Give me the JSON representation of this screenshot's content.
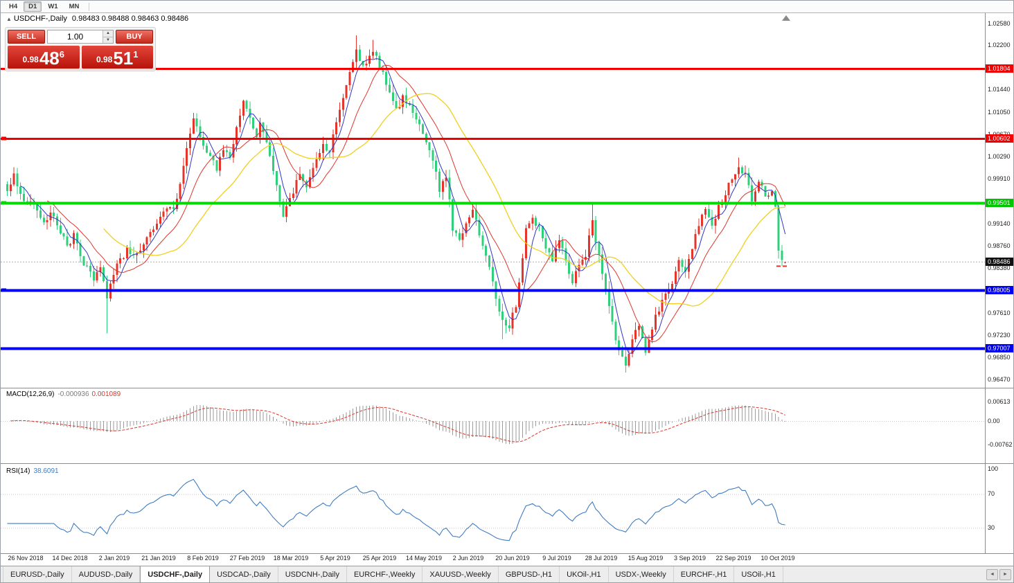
{
  "toolbar": {
    "timeframes": [
      "H4",
      "D1",
      "W1",
      "MN"
    ],
    "active": "D1"
  },
  "header": {
    "collapse_icon": "▲",
    "symbol": "USDCHF-,Daily",
    "open": "0.98483",
    "high": "0.98488",
    "low": "0.98463",
    "close": "0.98486"
  },
  "trade_panel": {
    "sell_label": "SELL",
    "buy_label": "BUY",
    "volume": "1.00",
    "volume_up_icon": "▲",
    "volume_down_icon": "▼",
    "sell_price": {
      "prefix": "0.98",
      "big": "48",
      "sup": "6"
    },
    "buy_price": {
      "prefix": "0.98",
      "big": "51",
      "sup": "1"
    }
  },
  "price_axis": {
    "ticks": [
      {
        "label": "1.02580",
        "v": 1.0258
      },
      {
        "label": "1.02200",
        "v": 1.022
      },
      {
        "label": "1.01804",
        "v": 1.01804,
        "badge": "red"
      },
      {
        "label": "1.01440",
        "v": 1.0144
      },
      {
        "label": "1.01050",
        "v": 1.0105
      },
      {
        "label": "1.00670",
        "v": 1.0067
      },
      {
        "label": "1.00602",
        "v": 1.00602,
        "badge": "red"
      },
      {
        "label": "1.00290",
        "v": 1.0029
      },
      {
        "label": "0.99910",
        "v": 0.9991
      },
      {
        "label": "0.99501",
        "v": 0.99501,
        "badge": "green"
      },
      {
        "label": "0.99140",
        "v": 0.9914
      },
      {
        "label": "0.98760",
        "v": 0.9876
      },
      {
        "label": "0.98486",
        "v": 0.98486,
        "badge": "black"
      },
      {
        "label": "0.98380",
        "v": 0.9838
      },
      {
        "label": "0.98005",
        "v": 0.98005,
        "badge": "blue"
      },
      {
        "label": "0.97610",
        "v": 0.9761
      },
      {
        "label": "0.97230",
        "v": 0.9723
      },
      {
        "label": "0.97007",
        "v": 0.97007,
        "badge": "blue"
      },
      {
        "label": "0.96850",
        "v": 0.9685
      },
      {
        "label": "0.96470",
        "v": 0.9647
      }
    ]
  },
  "chart_data": {
    "type": "candlestick",
    "symbol": "USDCHF-",
    "timeframe": "Daily",
    "bars": 235,
    "price_axis_range": [
      0.9647,
      1.0258
    ],
    "bid": "0.98486",
    "ask": "0.98511",
    "x_labels": [
      "26 Nov 2018",
      "14 Dec 2018",
      "2 Jan 2019",
      "21 Jan 2019",
      "8 Feb 2019",
      "27 Feb 2019",
      "18 Mar 2019",
      "5 Apr 2019",
      "25 Apr 2019",
      "14 May 2019",
      "2 Jun 2019",
      "20 Jun 2019",
      "9 Jul 2019",
      "28 Jul 2019",
      "15 Aug 2019",
      "3 Sep 2019",
      "22 Sep 2019",
      "10 Oct 2019"
    ],
    "close_anchors": [
      [
        0,
        0.9965
      ],
      [
        2,
        0.9996
      ],
      [
        5,
        0.9958
      ],
      [
        8,
        0.9944
      ],
      [
        11,
        0.9912
      ],
      [
        13,
        0.9936
      ],
      [
        16,
        0.9902
      ],
      [
        18,
        0.9874
      ],
      [
        20,
        0.9896
      ],
      [
        23,
        0.9846
      ],
      [
        26,
        0.9822
      ],
      [
        28,
        0.9842
      ],
      [
        30,
        0.9788
      ],
      [
        31,
        0.9812
      ],
      [
        33,
        0.9842
      ],
      [
        36,
        0.9868
      ],
      [
        39,
        0.9862
      ],
      [
        42,
        0.9892
      ],
      [
        45,
        0.9916
      ],
      [
        48,
        0.9942
      ],
      [
        50,
        0.9934
      ],
      [
        52,
        0.9986
      ],
      [
        54,
        1.0044
      ],
      [
        56,
        1.0096
      ],
      [
        58,
        1.0058
      ],
      [
        60,
        1.004
      ],
      [
        63,
        1.0008
      ],
      [
        65,
        1.0042
      ],
      [
        67,
        1.0028
      ],
      [
        69,
        1.0076
      ],
      [
        71,
        1.0122
      ],
      [
        73,
        1.0092
      ],
      [
        75,
        1.0062
      ],
      [
        76,
        1.0088
      ],
      [
        78,
        1.0052
      ],
      [
        80,
        1.0008
      ],
      [
        83,
        0.9926
      ],
      [
        86,
        0.9968
      ],
      [
        88,
        1.0002
      ],
      [
        90,
        0.9976
      ],
      [
        92,
        1.0012
      ],
      [
        95,
        1.0046
      ],
      [
        97,
        1.0038
      ],
      [
        99,
        1.0088
      ],
      [
        101,
        1.013
      ],
      [
        103,
        1.0178
      ],
      [
        105,
        1.0216
      ],
      [
        107,
        1.0182
      ],
      [
        109,
        1.02
      ],
      [
        110,
        1.0212
      ],
      [
        112,
        1.0186
      ],
      [
        114,
        1.0158
      ],
      [
        116,
        1.0122
      ],
      [
        117,
        1.0108
      ],
      [
        119,
        1.0132
      ],
      [
        121,
        1.0118
      ],
      [
        123,
        1.0092
      ],
      [
        125,
        1.0072
      ],
      [
        127,
        1.0042
      ],
      [
        129,
        1.0008
      ],
      [
        130,
        0.9972
      ],
      [
        132,
        0.9995
      ],
      [
        134,
        0.9906
      ],
      [
        136,
        0.9886
      ],
      [
        138,
        0.992
      ],
      [
        140,
        0.9938
      ],
      [
        142,
        0.9896
      ],
      [
        144,
        0.9858
      ],
      [
        146,
        0.9818
      ],
      [
        148,
        0.9762
      ],
      [
        149,
        0.9746
      ],
      [
        151,
        0.9738
      ],
      [
        153,
        0.9776
      ],
      [
        155,
        0.985
      ],
      [
        156,
        0.9902
      ],
      [
        158,
        0.9922
      ],
      [
        160,
        0.9908
      ],
      [
        162,
        0.987
      ],
      [
        164,
        0.9852
      ],
      [
        166,
        0.9886
      ],
      [
        168,
        0.985
      ],
      [
        170,
        0.9816
      ],
      [
        172,
        0.984
      ],
      [
        174,
        0.9862
      ],
      [
        176,
        0.9918
      ],
      [
        177,
        0.9882
      ],
      [
        179,
        0.9832
      ],
      [
        181,
        0.9778
      ],
      [
        183,
        0.9718
      ],
      [
        185,
        0.9682
      ],
      [
        186,
        0.9672
      ],
      [
        188,
        0.9712
      ],
      [
        190,
        0.9742
      ],
      [
        192,
        0.9698
      ],
      [
        194,
        0.9738
      ],
      [
        196,
        0.9768
      ],
      [
        198,
        0.9792
      ],
      [
        200,
        0.9816
      ],
      [
        202,
        0.9848
      ],
      [
        204,
        0.9832
      ],
      [
        206,
        0.9872
      ],
      [
        208,
        0.9912
      ],
      [
        210,
        0.9938
      ],
      [
        212,
        0.9906
      ],
      [
        214,
        0.9942
      ],
      [
        216,
        0.9968
      ],
      [
        218,
        0.9992
      ],
      [
        220,
        1.0012
      ],
      [
        222,
        0.9998
      ],
      [
        224,
        0.9952
      ],
      [
        226,
        0.9988
      ],
      [
        228,
        0.996
      ],
      [
        230,
        0.9968
      ],
      [
        231,
        0.9945
      ],
      [
        232,
        0.9868
      ],
      [
        233,
        0.9852
      ],
      [
        234,
        0.98486
      ]
    ],
    "wick_spikes": [
      [
        30,
        "L",
        0.9726
      ],
      [
        105,
        "H",
        1.0238
      ],
      [
        110,
        "H",
        1.023
      ],
      [
        149,
        "L",
        0.9716
      ],
      [
        176,
        "H",
        0.9948
      ],
      [
        186,
        "L",
        0.9659
      ],
      [
        192,
        "L",
        0.9688
      ],
      [
        220,
        "H",
        1.0028
      ]
    ],
    "last_bar": {
      "open": 0.98483,
      "high": 0.98488,
      "low": 0.98463,
      "close": 0.98486
    },
    "moving_averages": [
      {
        "period": 5,
        "color": "#2e34c8",
        "width": 1
      },
      {
        "period": 13,
        "color": "#e0352b",
        "width": 1
      },
      {
        "period": 30,
        "color": "#f0d01e",
        "width": 1.3
      }
    ],
    "horizontal_lines": [
      {
        "price": 1.01804,
        "color": "#f20000",
        "width": 3,
        "handle": false
      },
      {
        "price": 1.00602,
        "color": "#f20000",
        "width": 3,
        "handle": true
      },
      {
        "price": 0.99501,
        "color": "#00d800",
        "width": 4,
        "handle": true
      },
      {
        "price": 0.98005,
        "color": "#0000f0",
        "width": 4,
        "handle": true
      },
      {
        "price": 0.97007,
        "color": "#0000f0",
        "width": 4,
        "handle": false
      }
    ],
    "colors": {
      "up": "#e5352b",
      "down": "#2fcf7c",
      "current_price_line": "#b0b0b0"
    }
  },
  "indicators": {
    "macd": {
      "name": "MACD(12,26,9)",
      "value": "-0.000936",
      "signal_value": "0.001089",
      "axis": [
        {
          "label": "0.00613",
          "v": 0.00613
        },
        {
          "label": "0.00",
          "v": 0
        },
        {
          "label": "-0.00762",
          "v": -0.00762
        }
      ],
      "histogram_color": "#9a9a9a",
      "signal_color": "#d8372c"
    },
    "rsi": {
      "name": "RSI(14)",
      "value": "38.6091",
      "axis": [
        {
          "label": "100",
          "v": 100
        },
        {
          "label": "70",
          "v": 70
        },
        {
          "label": "30",
          "v": 30
        }
      ],
      "levels": [
        70,
        30
      ],
      "line_color": "#3f7cc0"
    }
  },
  "tabbar": {
    "tabs": [
      {
        "label": "EURUSD-,Daily"
      },
      {
        "label": "AUDUSD-,Daily"
      },
      {
        "label": "USDCHF-,Daily",
        "active": true
      },
      {
        "label": "USDCAD-,Daily"
      },
      {
        "label": "USDCNH-,Daily"
      },
      {
        "label": "EURCHF-,Weekly"
      },
      {
        "label": "XAUUSD-,Weekly"
      },
      {
        "label": "GBPUSD-,H1"
      },
      {
        "label": "UKOil-,H1"
      },
      {
        "label": "USDX-,Weekly"
      },
      {
        "label": "EURCHF-,H1"
      },
      {
        "label": "USOil-,H1"
      }
    ],
    "nav_left": "◄",
    "nav_right": "►"
  }
}
